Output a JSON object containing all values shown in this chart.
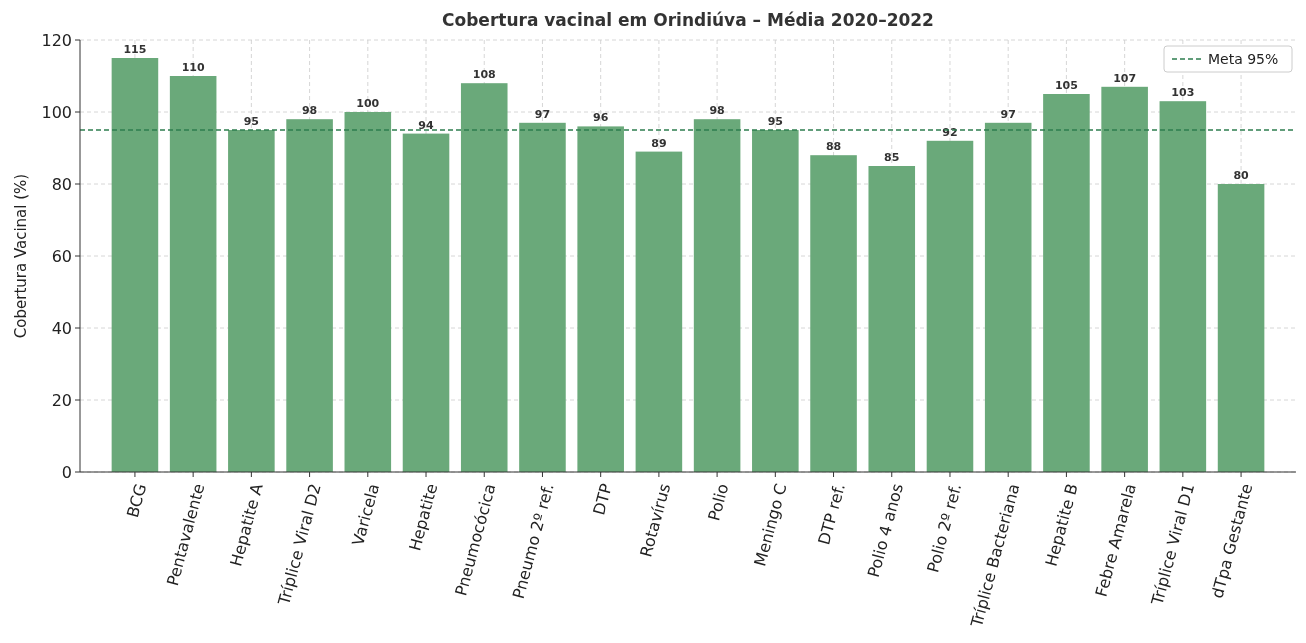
{
  "chart_data": {
    "type": "bar",
    "title": "Cobertura vacinal em Orindiúva – Média 2020–2022",
    "ylabel": "Cobertura Vacinal (%)",
    "categories": [
      "BCG",
      "Pentavalente",
      "Hepatite A",
      "Tríplice Viral D2",
      "Varicela",
      "Hepatite",
      "Pneumocócica",
      "Pneumo 2º ref.",
      "DTP",
      "Rotavírus",
      "Polio",
      "Meningo C",
      "DTP ref.",
      "Polio 4 anos",
      "Polio 2º ref.",
      "Tríplice Bacteriana",
      "Hepatite B",
      "Febre Amarela",
      "Tríplice Viral D1",
      "dTpa Gestante"
    ],
    "values": [
      115,
      110,
      95,
      98,
      100,
      94,
      108,
      97,
      96,
      89,
      98,
      95,
      88,
      85,
      92,
      97,
      105,
      107,
      103,
      80
    ],
    "color": "#6aa97a",
    "ylim": [
      0,
      120
    ],
    "yticks": [
      0,
      20,
      40,
      60,
      80,
      100,
      120
    ],
    "grid": true,
    "data_labels": true,
    "legend": "top right",
    "ref_lines": [
      {
        "axis": "y",
        "value": 95,
        "label": "Meta 95%",
        "color": "#2e7d4f",
        "line_style": "dashed"
      }
    ]
  }
}
